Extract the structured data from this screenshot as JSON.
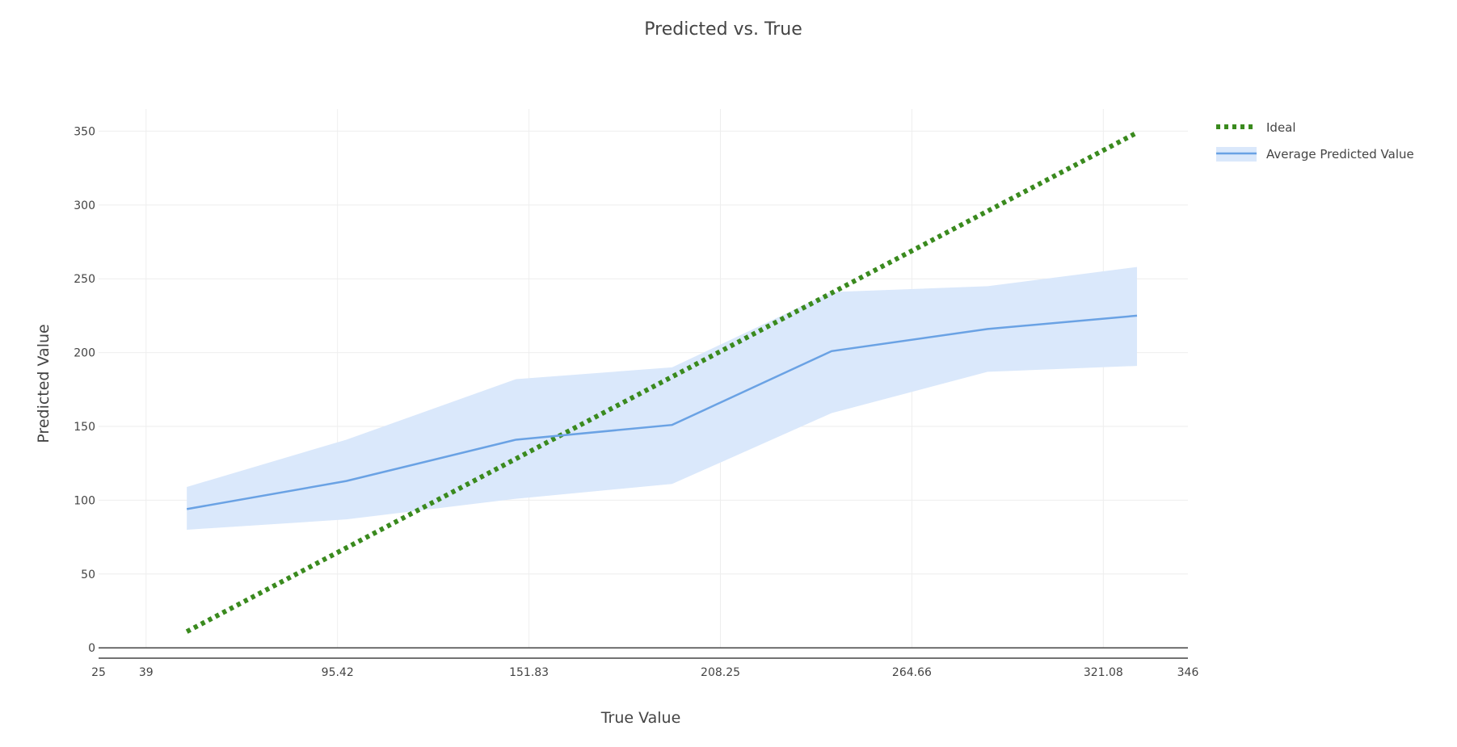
{
  "chart_data": {
    "type": "line",
    "title": "Predicted vs. True",
    "xlabel": "True Value",
    "ylabel": "Predicted Value",
    "xlim": [
      25,
      346
    ],
    "ylim": [
      -7,
      365
    ],
    "x_ticks": [
      25,
      39,
      95.42,
      151.83,
      208.25,
      264.66,
      321.08,
      346
    ],
    "x_tick_labels": [
      "25",
      "39",
      "95.42",
      "151.83",
      "208.25",
      "264.66",
      "321.08",
      "346"
    ],
    "y_ticks": [
      0,
      50,
      100,
      150,
      200,
      250,
      300,
      350
    ],
    "y_tick_labels": [
      "0",
      "50",
      "100",
      "150",
      "200",
      "250",
      "300",
      "350"
    ],
    "grid": true,
    "legend_position": "top-right",
    "series": [
      {
        "name": "Ideal",
        "style": "dotted",
        "color": "#3a8a1e",
        "x": [
          51,
          331
        ],
        "y": [
          11,
          349
        ]
      },
      {
        "name": "Average Predicted Value",
        "style": "solid",
        "color": "#6aa2e4",
        "band_color": "#dae8fb",
        "x": [
          51,
          98,
          148,
          194,
          241,
          287,
          331
        ],
        "y": [
          94,
          113,
          141,
          151,
          201,
          216,
          225
        ],
        "upper": [
          109,
          141,
          182,
          190,
          241,
          245,
          258
        ],
        "lower": [
          80,
          87,
          101,
          111,
          159,
          187,
          191
        ]
      }
    ]
  }
}
